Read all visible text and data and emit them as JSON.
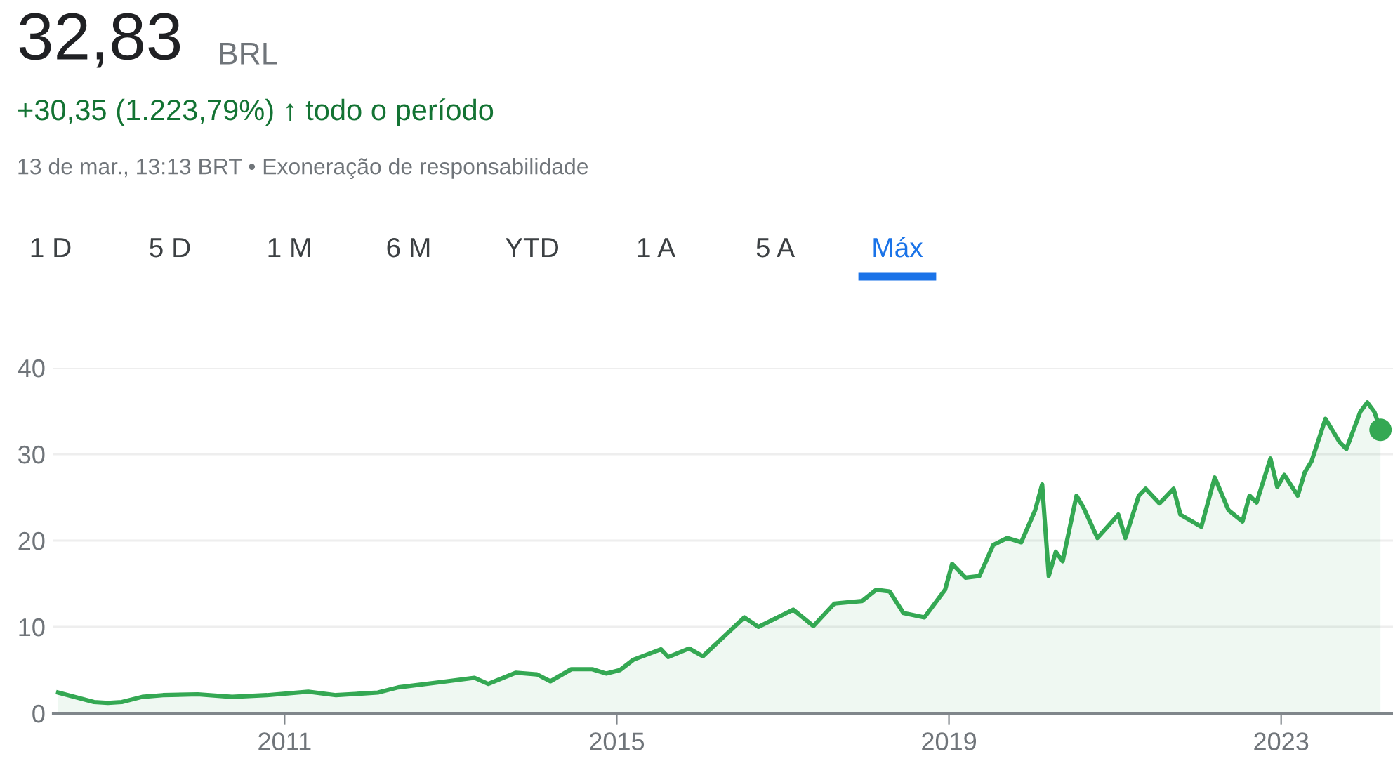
{
  "chart_data": {
    "type": "area",
    "title": "32,83",
    "subtitle": "+30,35 (1.223,79%) ↑ todo o período",
    "annotations": [
      "BRL",
      "13 de mar., 13:13 BRT • Exoneração de responsabilidade",
      "1 D",
      "5 D",
      "1 M",
      "6 M",
      "YTD",
      "1 A",
      "5 A",
      "Máx"
    ],
    "series": [
      {
        "color": "#34a853",
        "x": [
          "2008-04-10",
          "2008-09",
          "2008-11",
          "2009-01",
          "2009-04",
          "2009-07",
          "2009-12",
          "2010-05",
          "2010-10",
          "2011-04",
          "2011-08",
          "2012-02",
          "2012-05",
          "2012-11",
          "2013-04",
          "2013-06",
          "2013-10",
          "2014-01",
          "2014-03",
          "2014-06",
          "2014-09",
          "2014-11",
          "2015-01",
          "2015-03",
          "2015-07",
          "2015-08",
          "2015-11",
          "2016-01",
          "2016-07",
          "2016-09",
          "2017-02",
          "2017-05",
          "2017-08",
          "2017-12",
          "2018-02",
          "2018-04",
          "2018-06",
          "2018-09",
          "2018-12",
          "2019-01",
          "2019-03",
          "2019-05",
          "2019-07",
          "2019-09",
          "2019-11",
          "2020-01",
          "2020-02",
          "2020-03",
          "2020-04",
          "2020-05",
          "2020-07",
          "2020-08",
          "2020-10",
          "2021-01",
          "2021-02",
          "2021-04",
          "2021-05",
          "2021-07",
          "2021-09",
          "2021-10",
          "2022-01",
          "2022-03",
          "2022-05",
          "2022-07",
          "2022-08",
          "2022-09",
          "2022-11",
          "2022-12",
          "2023-01",
          "2023-03",
          "2023-04",
          "2023-05",
          "2023-07",
          "2023-09",
          "2023-10",
          "2023-12",
          "2024-01",
          "2024-02",
          "2024-03-13"
        ],
        "values": [
          2.4,
          1.3,
          1.2,
          1.3,
          1.9,
          2.1,
          2.2,
          1.9,
          2.1,
          2.5,
          2.1,
          2.4,
          3.0,
          3.6,
          4.1,
          3.4,
          4.7,
          4.5,
          3.7,
          5.1,
          5.1,
          4.6,
          5.0,
          6.2,
          7.4,
          6.5,
          7.5,
          6.6,
          11.1,
          10.0,
          12.0,
          10.1,
          12.7,
          13.0,
          14.3,
          14.1,
          11.6,
          11.1,
          14.3,
          17.3,
          15.7,
          15.9,
          19.5,
          20.3,
          19.8,
          23.5,
          26.5,
          15.9,
          18.7,
          17.6,
          25.2,
          23.8,
          20.3,
          23.0,
          20.3,
          25.2,
          26.0,
          24.3,
          26.0,
          23.0,
          21.6,
          27.3,
          23.5,
          22.2,
          25.2,
          24.4,
          29.5,
          26.2,
          27.6,
          25.2,
          27.9,
          29.2,
          34.1,
          31.4,
          30.6,
          34.9,
          36.0,
          34.9,
          32.83
        ]
      },
      {
        "type": "scatter",
        "color": "#34a853",
        "marker": "circle",
        "x": [
          "2024-03-13"
        ],
        "values": [
          32.83
        ]
      }
    ],
    "xlim": [
      "2008-03-20",
      "2024-05-07"
    ],
    "xticks": [
      {
        "value": "2011-01-01",
        "label": "2011"
      },
      {
        "value": "2015-01-01",
        "label": "2015"
      },
      {
        "value": "2019-01-01",
        "label": "2019"
      },
      {
        "value": "2023-01-01",
        "label": "2023"
      }
    ],
    "ylim": [
      0,
      40
    ],
    "yticks": [
      0,
      10,
      20,
      30,
      40
    ],
    "grid": "y"
  }
}
